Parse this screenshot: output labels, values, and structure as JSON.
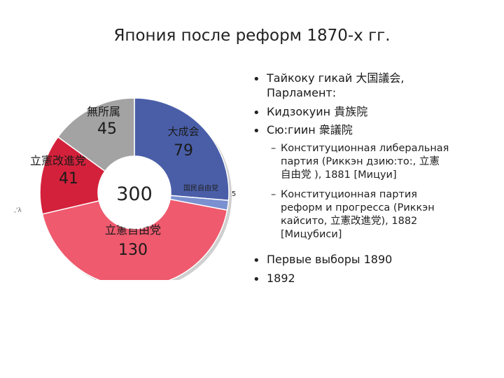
{
  "title": "Япония после реформ 1870-х гг.",
  "chart_data": {
    "type": "pie",
    "donut": true,
    "total_label": "300",
    "slices": [
      {
        "name": "大成会",
        "value": 79,
        "color": "#4a5ea8"
      },
      {
        "name": "国民自由党",
        "value": 5,
        "color": "#7a90d0"
      },
      {
        "name": "立憲自由党",
        "value": 130,
        "color": "#ef5a6e"
      },
      {
        "name": "立憲改進党",
        "value": 41,
        "color": "#d4213b"
      },
      {
        "name": "無所属",
        "value": 45,
        "color": "#a3a3a3"
      }
    ]
  },
  "stray_mark": ",'λ",
  "bullets": [
    {
      "text": "Тайкоку гикай 大国議会,",
      "line2": "Парламент:"
    },
    {
      "text": "Кидзокуин 貴族院"
    },
    {
      "text": "Сю:гиин 衆議院"
    }
  ],
  "subs": [
    {
      "lines": [
        "Конституционная либеральная",
        "партия  (Риккэн дзию:то:, 立憲",
        "自由党 ),  1881 [Мицуи]"
      ]
    },
    {
      "lines": [
        "Конституционная партия",
        "реформ и прогресса (Риккэн",
        "кайсито, 立憲改進党), 1882",
        "[Мицубиси]"
      ]
    }
  ],
  "bullets2": [
    {
      "text": "Первые выборы 1890"
    },
    {
      "text": "1892"
    }
  ]
}
